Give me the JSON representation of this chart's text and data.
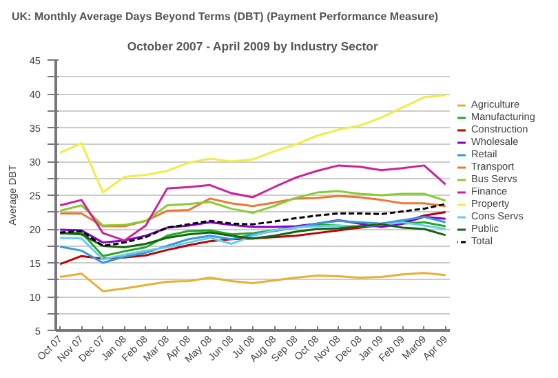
{
  "chart_data": {
    "type": "line",
    "title": "UK: Monthly Average Days Beyond Terms (DBT) (Payment Performance Measure)",
    "subtitle": "October 2007 - April 2009 by Industry Sector",
    "ylabel": "Average DBT",
    "categories": [
      "Oct 07",
      "Nov 07",
      "Dec 07",
      "Jan 08",
      "Feb 08",
      "Mar 08",
      "Apr 08",
      "May 08",
      "Jun 08",
      "Jul 08",
      "Aug 08",
      "Sep 08",
      "Oct 08",
      "Nov 08",
      "Dec 08",
      "Jan 09",
      "Feb 09",
      "Mar09",
      "Apr 09"
    ],
    "ylim": [
      5,
      45
    ],
    "yticks": [
      5,
      {
        "value": 7.5,
        "label": null
      },
      10,
      {
        "value": 12.5,
        "label": null
      },
      15,
      {
        "value": 17.5,
        "label": null
      },
      20,
      {
        "value": 22.5,
        "label": null
      },
      25,
      {
        "value": 27.5,
        "label": null
      },
      30,
      {
        "value": 32.5,
        "label": null
      },
      35,
      {
        "value": 37.5,
        "label": null
      },
      40,
      {
        "value": 42.5,
        "label": null
      },
      45
    ],
    "grid": "y",
    "legend": "right",
    "line_style": "solid",
    "series": [
      {
        "name": "Agriculture",
        "color": "#e8b030",
        "values": [
          12.9,
          13.4,
          10.8,
          11.2,
          11.7,
          12.2,
          12.3,
          12.8,
          12.3,
          12.0,
          12.4,
          12.8,
          13.1,
          13.0,
          12.8,
          12.9,
          13.3,
          13.5,
          13.2
        ]
      },
      {
        "name": "Manufacturing",
        "color": "#22aa22",
        "values": [
          19.3,
          19.5,
          16.0,
          16.7,
          17.3,
          19.0,
          19.7,
          19.8,
          19.2,
          19.4,
          19.8,
          20.3,
          20.6,
          20.5,
          20.2,
          20.5,
          20.8,
          21.0,
          20.4
        ]
      },
      {
        "name": "Construction",
        "color": "#c00000",
        "values": [
          14.8,
          16.0,
          15.6,
          15.8,
          16.1,
          16.9,
          17.6,
          18.2,
          18.5,
          18.6,
          18.8,
          19.0,
          19.4,
          19.8,
          20.2,
          20.8,
          21.0,
          22.0,
          22.5
        ]
      },
      {
        "name": "Wholesale",
        "color": "#8800cc",
        "values": [
          19.9,
          19.8,
          18.0,
          18.3,
          19.0,
          20.2,
          20.5,
          21.0,
          20.6,
          20.3,
          20.3,
          20.4,
          20.8,
          21.3,
          20.8,
          20.3,
          20.8,
          21.8,
          21.5
        ]
      },
      {
        "name": "Retail",
        "color": "#3399dd",
        "values": [
          17.4,
          16.8,
          15.0,
          15.9,
          16.5,
          17.5,
          18.5,
          19.0,
          18.5,
          19.2,
          19.7,
          20.2,
          20.8,
          21.2,
          21.0,
          20.8,
          21.3,
          21.8,
          21.0
        ]
      },
      {
        "name": "Transport",
        "color": "#ee7733",
        "values": [
          22.3,
          22.3,
          20.4,
          20.4,
          21.2,
          22.7,
          22.8,
          24.5,
          23.8,
          23.4,
          23.9,
          24.5,
          24.6,
          24.9,
          24.7,
          24.3,
          23.8,
          23.8,
          23.4
        ]
      },
      {
        "name": "Bus Servs",
        "color": "#88cc33",
        "values": [
          22.7,
          23.5,
          20.5,
          20.6,
          21.2,
          23.5,
          23.7,
          24.0,
          23.0,
          22.4,
          23.4,
          24.6,
          25.4,
          25.6,
          25.2,
          25.0,
          25.2,
          25.2,
          24.2
        ]
      },
      {
        "name": "Finance",
        "color": "#cc2299",
        "values": [
          23.5,
          24.3,
          19.4,
          18.3,
          20.5,
          26.0,
          26.2,
          26.5,
          25.3,
          24.7,
          26.2,
          27.6,
          28.6,
          29.4,
          29.2,
          28.7,
          29.0,
          29.4,
          26.6
        ]
      },
      {
        "name": "Property",
        "color": "#eeee44",
        "values": [
          31.3,
          32.7,
          25.4,
          27.7,
          28.0,
          28.6,
          29.8,
          30.4,
          30.0,
          30.3,
          31.5,
          32.5,
          33.8,
          34.7,
          35.3,
          36.5,
          38.0,
          39.5,
          39.8
        ]
      },
      {
        "name": "Cons Servs",
        "color": "#66ccee",
        "values": [
          18.7,
          18.6,
          15.5,
          16.2,
          16.8,
          17.3,
          18.0,
          18.7,
          17.8,
          19.0,
          19.8,
          20.2,
          20.4,
          20.5,
          20.4,
          20.6,
          21.0,
          20.5,
          20.0
        ]
      },
      {
        "name": "Public",
        "color": "#116611",
        "values": [
          19.4,
          19.2,
          17.5,
          17.3,
          17.8,
          18.7,
          19.2,
          19.5,
          19.0,
          18.6,
          19.0,
          19.6,
          20.0,
          20.1,
          20.4,
          20.7,
          20.2,
          20.0,
          19.1
        ]
      },
      {
        "name": "Total",
        "color": "#000000",
        "line_style": "dashed",
        "values": [
          19.5,
          19.7,
          17.5,
          18.0,
          18.8,
          20.2,
          20.7,
          21.2,
          20.8,
          20.7,
          21.1,
          21.6,
          22.0,
          22.3,
          22.3,
          22.2,
          22.6,
          23.0,
          23.7
        ]
      }
    ]
  }
}
